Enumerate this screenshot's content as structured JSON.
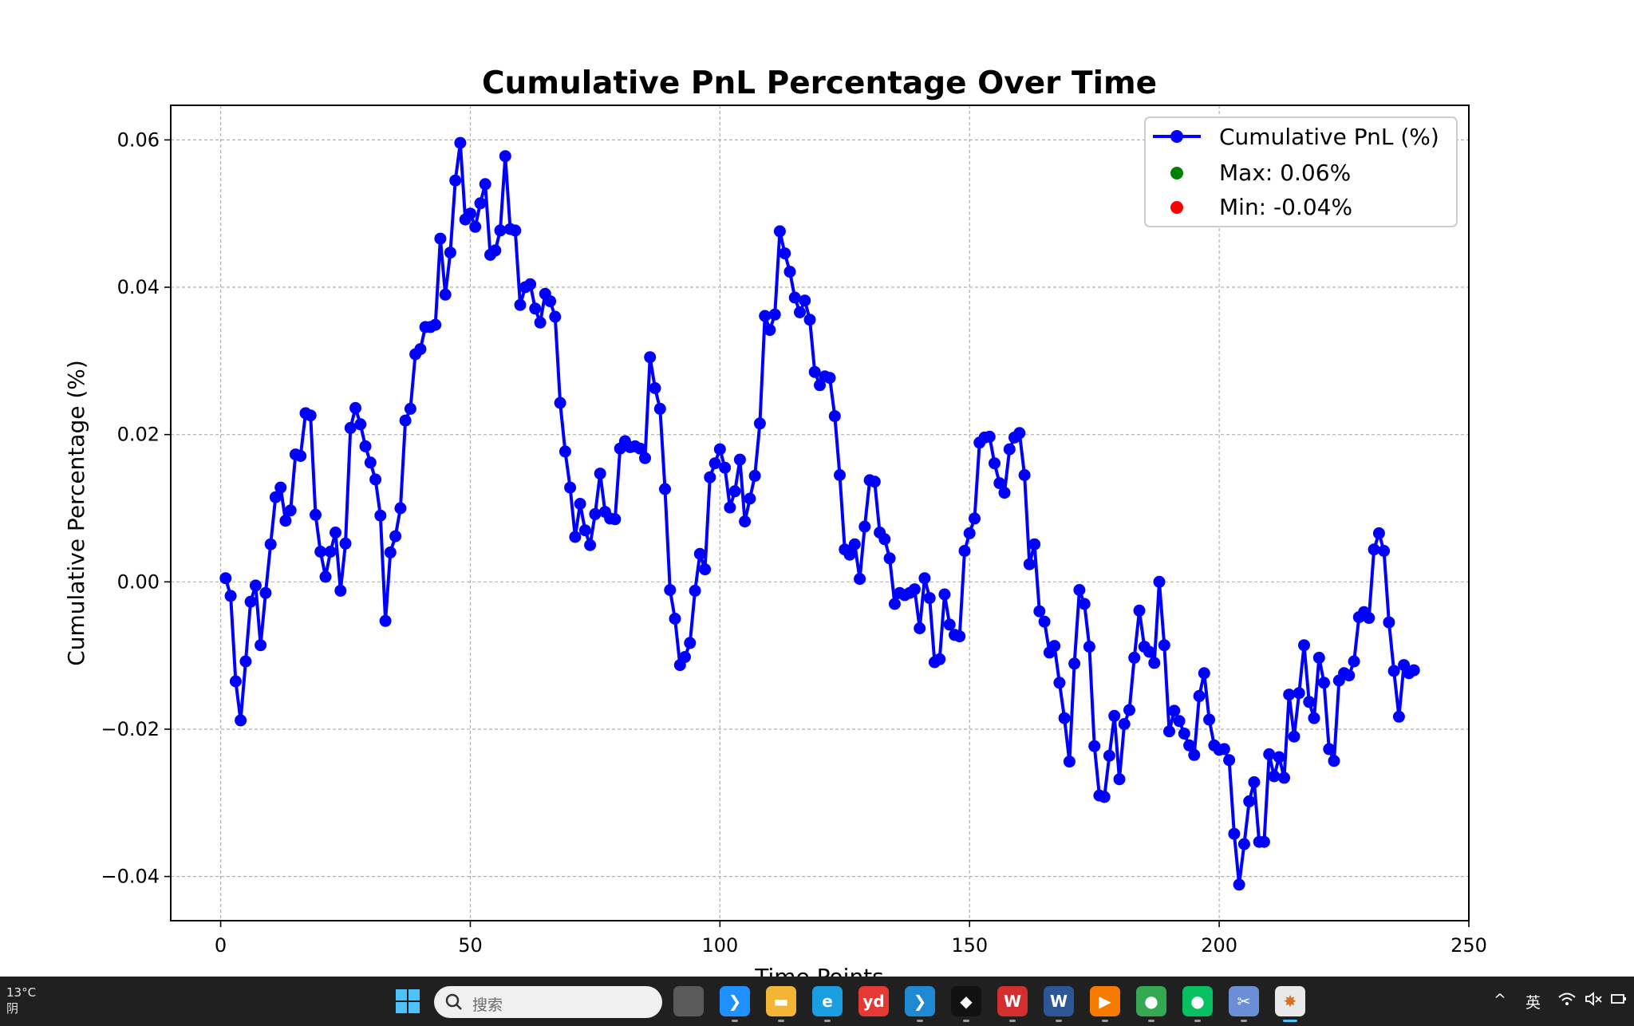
{
  "chart_data": {
    "type": "line",
    "title": "Cumulative PnL Percentage Over Time",
    "xlabel": "Time Points",
    "ylabel": "Cumulative Percentage (%)",
    "xlim": [
      -10,
      250
    ],
    "ylim": [
      -0.046,
      0.0647
    ],
    "xticks": [
      0,
      50,
      100,
      150,
      200,
      250
    ],
    "yticks": [
      -0.04,
      -0.02,
      0.0,
      0.02,
      0.04,
      0.06
    ],
    "xtick_labels": [
      "0",
      "50",
      "100",
      "150",
      "200",
      "250"
    ],
    "ytick_labels": [
      "−0.04",
      "−0.02",
      "0.00",
      "0.02",
      "0.04",
      "0.06"
    ],
    "grid": true,
    "legend_position": "top-right",
    "series": [
      {
        "name": "Cumulative PnL (%)",
        "color": "#0000ff",
        "marker": "circle",
        "x_start": 1,
        "values": [
          0.0005,
          -0.0019,
          -0.0135,
          -0.0188,
          -0.0108,
          -0.0027,
          -0.0005,
          -0.0086,
          -0.0015,
          0.0051,
          0.0115,
          0.0128,
          0.0083,
          0.0097,
          0.0173,
          0.0171,
          0.0229,
          0.0226,
          0.0091,
          0.0041,
          0.0007,
          0.0041,
          0.0067,
          -0.0012,
          0.0052,
          0.0209,
          0.0236,
          0.0214,
          0.0184,
          0.0162,
          0.0139,
          0.009,
          -0.0053,
          0.004,
          0.0062,
          0.01,
          0.0219,
          0.0235,
          0.0309,
          0.0316,
          0.0346,
          0.0346,
          0.0349,
          0.0466,
          0.039,
          0.0447,
          0.0545,
          0.0596,
          0.0492,
          0.05,
          0.0482,
          0.0514,
          0.054,
          0.0444,
          0.045,
          0.0477,
          0.0578,
          0.0479,
          0.0477,
          0.0376,
          0.04,
          0.0404,
          0.0371,
          0.0352,
          0.0391,
          0.0381,
          0.036,
          0.0243,
          0.0177,
          0.0128,
          0.0061,
          0.0106,
          0.007,
          0.005,
          0.0092,
          0.0147,
          0.0095,
          0.0086,
          0.0085,
          0.0181,
          0.0191,
          0.0183,
          0.0184,
          0.0181,
          0.0168,
          0.0305,
          0.0263,
          0.0235,
          0.0126,
          -0.0011,
          -0.005,
          -0.0113,
          -0.0102,
          -0.0083,
          -0.0012,
          0.0038,
          0.0017,
          0.0142,
          0.0161,
          0.018,
          0.0155,
          0.0101,
          0.0123,
          0.0166,
          0.0082,
          0.0113,
          0.0144,
          0.0215,
          0.0361,
          0.0342,
          0.0363,
          0.0476,
          0.0446,
          0.0421,
          0.0386,
          0.0366,
          0.0382,
          0.0356,
          0.0285,
          0.0267,
          0.0279,
          0.0277,
          0.0225,
          0.0145,
          0.0044,
          0.0037,
          0.0051,
          0.0004,
          0.0075,
          0.0138,
          0.0136,
          0.0067,
          0.0058,
          0.0032,
          -0.003,
          -0.0015,
          -0.0018,
          -0.0015,
          -0.001,
          -0.0063,
          0.0005,
          -0.0022,
          -0.0109,
          -0.0105,
          -0.0017,
          -0.0058,
          -0.0072,
          -0.0074,
          0.0042,
          0.0066,
          0.0086,
          0.0189,
          0.0196,
          0.0197,
          0.0161,
          0.0134,
          0.0121,
          0.018,
          0.0196,
          0.0202,
          0.0145,
          0.0024,
          0.0051,
          -0.004,
          -0.0054,
          -0.0096,
          -0.0087,
          -0.0137,
          -0.0185,
          -0.0244,
          -0.0111,
          -0.0011,
          -0.003,
          -0.0088,
          -0.0223,
          -0.029,
          -0.0292,
          -0.0236,
          -0.0182,
          -0.0268,
          -0.0193,
          -0.0174,
          -0.0103,
          -0.0039,
          -0.0088,
          -0.0095,
          -0.011,
          0.0,
          -0.0086,
          -0.0203,
          -0.0175,
          -0.0189,
          -0.0206,
          -0.0222,
          -0.0235,
          -0.0155,
          -0.0124,
          -0.0187,
          -0.0222,
          -0.0228,
          -0.0227,
          -0.0242,
          -0.0342,
          -0.0411,
          -0.0356,
          -0.0298,
          -0.0272,
          -0.0353,
          -0.0353,
          -0.0234,
          -0.0264,
          -0.0238,
          -0.0266,
          -0.0153,
          -0.021,
          -0.0151,
          -0.0086,
          -0.0163,
          -0.0185,
          -0.0103,
          -0.0137,
          -0.0227,
          -0.0243,
          -0.0134,
          -0.0124,
          -0.0127,
          -0.0108,
          -0.0048,
          -0.0041,
          -0.0049,
          0.0044,
          0.0066,
          0.0042,
          -0.0055,
          -0.0121,
          -0.0183,
          -0.0113,
          -0.0124,
          -0.012
        ]
      }
    ],
    "legend": [
      {
        "label": "Cumulative PnL (%)",
        "type": "line",
        "color": "#0000ff"
      },
      {
        "label": "Max: 0.06%",
        "type": "point",
        "color": "#008000"
      },
      {
        "label": "Min: -0.04%",
        "type": "point",
        "color": "#ff0000"
      }
    ]
  },
  "taskbar": {
    "weather_temp": "13°C",
    "weather_desc": "阴",
    "search_placeholder": "搜索",
    "ime_label": "英",
    "icons": [
      {
        "name": "task-view-icon",
        "label": "",
        "color": "#5a5a5a"
      },
      {
        "name": "feishu-icon",
        "label": "❯",
        "color": "#1e90ff"
      },
      {
        "name": "file-explorer-icon",
        "label": "▬",
        "color": "#f2b535"
      },
      {
        "name": "edge-icon",
        "label": "e",
        "color": "#1b9de2"
      },
      {
        "name": "youdao-icon",
        "label": "yd",
        "color": "#e53935"
      },
      {
        "name": "vscode-icon",
        "label": "❯",
        "color": "#1f8ad2"
      },
      {
        "name": "app-black-icon",
        "label": "◆",
        "color": "#111111"
      },
      {
        "name": "wps-icon",
        "label": "W",
        "color": "#d32f2f"
      },
      {
        "name": "word-icon",
        "label": "W",
        "color": "#2b5797"
      },
      {
        "name": "app-orange-icon",
        "label": "▶",
        "color": "#f57c00"
      },
      {
        "name": "chrome-icon",
        "label": "●",
        "color": "#34a853"
      },
      {
        "name": "wechat-icon",
        "label": "●",
        "color": "#07c160"
      },
      {
        "name": "snipping-tool-icon",
        "label": "✂",
        "color": "#6a8fd6"
      },
      {
        "name": "python-app-icon",
        "label": "✸",
        "color": "#e9e9e9"
      }
    ]
  }
}
